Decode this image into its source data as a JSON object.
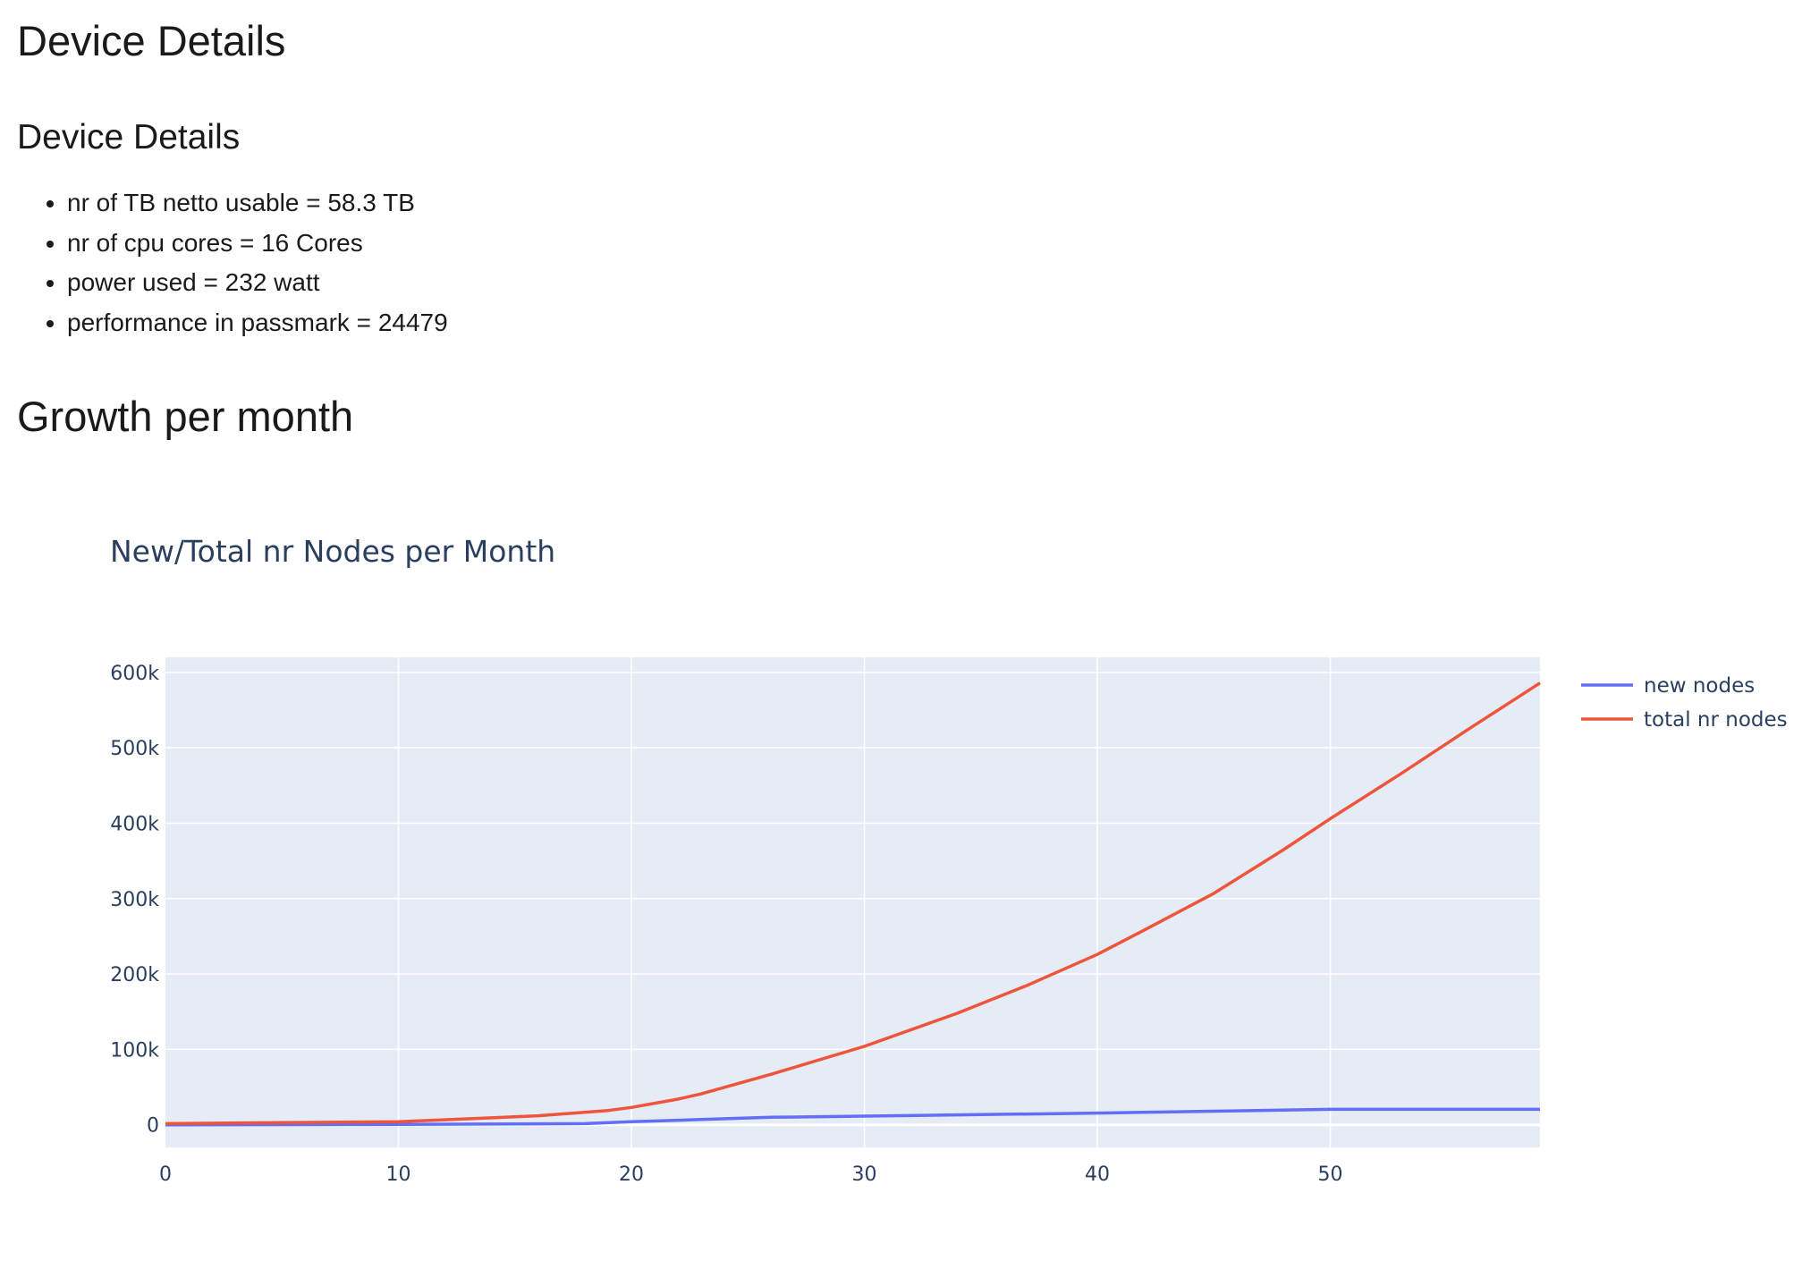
{
  "page": {
    "heading": "Device Details",
    "subheading": "Device Details",
    "details": [
      "nr of TB netto usable = 58.3 TB",
      "nr of cpu cores = 16 Cores",
      "power used = 232 watt",
      "performance in passmark = 24479"
    ],
    "growth_heading": "Growth per month"
  },
  "chart_data": {
    "type": "line",
    "title": "New/Total nr Nodes per Month",
    "xlabel": "",
    "ylabel": "",
    "xlim": [
      0,
      59
    ],
    "ylim": [
      -30000,
      620000
    ],
    "x_ticks": [
      0,
      10,
      20,
      30,
      40,
      50
    ],
    "y_ticks": [
      0,
      100000,
      200000,
      300000,
      400000,
      500000,
      600000
    ],
    "y_tick_labels": [
      "0",
      "100k",
      "200k",
      "300k",
      "400k",
      "500k",
      "600k"
    ],
    "grid": true,
    "legend_position": "top-right",
    "colors": {
      "plot_bg": "#e5ecf6",
      "grid": "#ffffff",
      "text": "#2a3f5f"
    },
    "series": [
      {
        "name": "new nodes",
        "color": "#636efa",
        "x": [
          0,
          10,
          18,
          20,
          23,
          26,
          30,
          35,
          40,
          45,
          50,
          55,
          59
        ],
        "y": [
          0,
          500,
          1500,
          4000,
          7000,
          10000,
          11500,
          13500,
          15500,
          18000,
          20500,
          20500,
          20500
        ]
      },
      {
        "name": "total nr nodes",
        "color": "#ef553b",
        "x": [
          0,
          5,
          10,
          13,
          16,
          19,
          20,
          22,
          23,
          26,
          30,
          34,
          37,
          40,
          42,
          45,
          48,
          50,
          53,
          56,
          59
        ],
        "y": [
          1500,
          3000,
          4000,
          8000,
          12000,
          19000,
          23000,
          34000,
          41000,
          67000,
          104000,
          148000,
          185000,
          226000,
          258000,
          307000,
          365000,
          406000,
          465000,
          526000,
          586000
        ]
      }
    ]
  }
}
